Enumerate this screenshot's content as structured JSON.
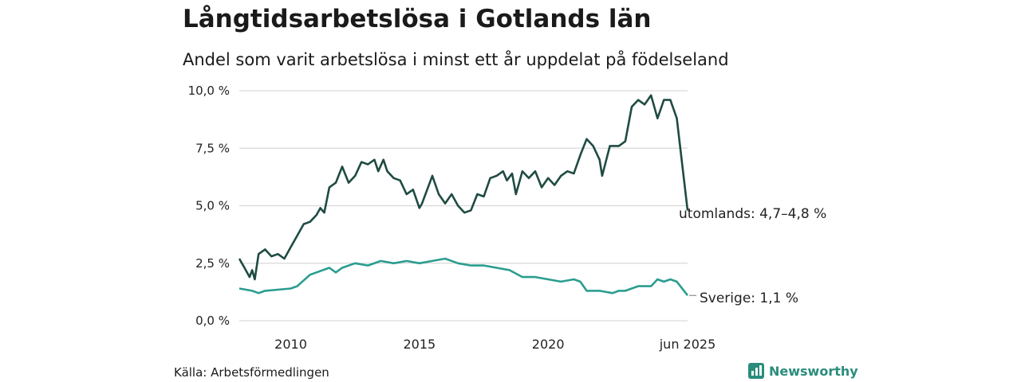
{
  "title": "Långtidsarbetslösa i Gotlands län",
  "subtitle": "Andel som varit arbetslösa i minst ett år uppdelat på födelseland",
  "source": "Källa: Arbetsförmedlingen",
  "brand": {
    "name": "Newsworthy",
    "icon": "newsworthy-logo-icon",
    "color": "#2a8c7c"
  },
  "chart_data": {
    "type": "line",
    "x_range": [
      "2008-01",
      "2025-06"
    ],
    "ylim": [
      0,
      10
    ],
    "y_ticks": [
      {
        "value": 0,
        "label": "0,0 %"
      },
      {
        "value": 2.5,
        "label": "2,5 %"
      },
      {
        "value": 5,
        "label": "5,0 %"
      },
      {
        "value": 7.5,
        "label": "7,5 %"
      },
      {
        "value": 10,
        "label": "10,0 %"
      }
    ],
    "x_ticks": [
      {
        "value": 2010,
        "label": "2010"
      },
      {
        "value": 2015,
        "label": "2015"
      },
      {
        "value": 2020,
        "label": "2020"
      },
      {
        "value": 2025.42,
        "label": "jun 2025"
      }
    ],
    "grid": "horizontal",
    "series": [
      {
        "name": "utomlands",
        "end_label": "utomlands: 4,7–4,8 %",
        "color": "#1f4b43",
        "points": [
          [
            2008.0,
            2.7
          ],
          [
            2008.2,
            2.3
          ],
          [
            2008.4,
            1.9
          ],
          [
            2008.5,
            2.2
          ],
          [
            2008.6,
            1.8
          ],
          [
            2008.75,
            2.9
          ],
          [
            2009.0,
            3.1
          ],
          [
            2009.25,
            2.8
          ],
          [
            2009.5,
            2.9
          ],
          [
            2009.75,
            2.7
          ],
          [
            2010.0,
            3.2
          ],
          [
            2010.25,
            3.7
          ],
          [
            2010.5,
            4.2
          ],
          [
            2010.75,
            4.3
          ],
          [
            2011.0,
            4.6
          ],
          [
            2011.15,
            4.9
          ],
          [
            2011.3,
            4.7
          ],
          [
            2011.5,
            5.8
          ],
          [
            2011.75,
            6.0
          ],
          [
            2012.0,
            6.7
          ],
          [
            2012.25,
            6.0
          ],
          [
            2012.5,
            6.3
          ],
          [
            2012.75,
            6.9
          ],
          [
            2013.0,
            6.8
          ],
          [
            2013.25,
            7.0
          ],
          [
            2013.4,
            6.5
          ],
          [
            2013.6,
            7.0
          ],
          [
            2013.75,
            6.5
          ],
          [
            2014.0,
            6.2
          ],
          [
            2014.25,
            6.1
          ],
          [
            2014.5,
            5.5
          ],
          [
            2014.75,
            5.7
          ],
          [
            2015.0,
            4.9
          ],
          [
            2015.1,
            5.1
          ],
          [
            2015.5,
            6.3
          ],
          [
            2015.75,
            5.5
          ],
          [
            2016.0,
            5.1
          ],
          [
            2016.25,
            5.5
          ],
          [
            2016.5,
            5.0
          ],
          [
            2016.75,
            4.7
          ],
          [
            2017.0,
            4.8
          ],
          [
            2017.25,
            5.5
          ],
          [
            2017.5,
            5.4
          ],
          [
            2017.75,
            6.2
          ],
          [
            2018.0,
            6.3
          ],
          [
            2018.25,
            6.5
          ],
          [
            2018.4,
            6.1
          ],
          [
            2018.6,
            6.4
          ],
          [
            2018.75,
            5.5
          ],
          [
            2019.0,
            6.5
          ],
          [
            2019.25,
            6.2
          ],
          [
            2019.5,
            6.5
          ],
          [
            2019.75,
            5.8
          ],
          [
            2020.0,
            6.2
          ],
          [
            2020.25,
            5.9
          ],
          [
            2020.5,
            6.3
          ],
          [
            2020.75,
            6.5
          ],
          [
            2021.0,
            6.4
          ],
          [
            2021.25,
            7.2
          ],
          [
            2021.5,
            7.9
          ],
          [
            2021.75,
            7.6
          ],
          [
            2022.0,
            7.0
          ],
          [
            2022.1,
            6.3
          ],
          [
            2022.4,
            7.6
          ],
          [
            2022.75,
            7.6
          ],
          [
            2023.0,
            7.8
          ],
          [
            2023.25,
            9.3
          ],
          [
            2023.5,
            9.6
          ],
          [
            2023.75,
            9.4
          ],
          [
            2024.0,
            9.8
          ],
          [
            2024.25,
            8.8
          ],
          [
            2024.5,
            9.6
          ],
          [
            2024.75,
            9.6
          ],
          [
            2025.0,
            8.8
          ],
          [
            2025.42,
            4.8
          ]
        ]
      },
      {
        "name": "Sverige",
        "end_label": "Sverige: 1,1 %",
        "color": "#2a9d8f",
        "points": [
          [
            2008.0,
            1.4
          ],
          [
            2008.5,
            1.3
          ],
          [
            2008.75,
            1.2
          ],
          [
            2009.0,
            1.3
          ],
          [
            2009.5,
            1.35
          ],
          [
            2010.0,
            1.4
          ],
          [
            2010.25,
            1.5
          ],
          [
            2010.75,
            2.0
          ],
          [
            2011.0,
            2.1
          ],
          [
            2011.25,
            2.2
          ],
          [
            2011.5,
            2.3
          ],
          [
            2011.75,
            2.1
          ],
          [
            2012.0,
            2.3
          ],
          [
            2012.5,
            2.5
          ],
          [
            2013.0,
            2.4
          ],
          [
            2013.5,
            2.6
          ],
          [
            2014.0,
            2.5
          ],
          [
            2014.5,
            2.6
          ],
          [
            2015.0,
            2.5
          ],
          [
            2015.5,
            2.6
          ],
          [
            2016.0,
            2.7
          ],
          [
            2016.5,
            2.5
          ],
          [
            2017.0,
            2.4
          ],
          [
            2017.5,
            2.4
          ],
          [
            2018.0,
            2.3
          ],
          [
            2018.5,
            2.2
          ],
          [
            2019.0,
            1.9
          ],
          [
            2019.5,
            1.9
          ],
          [
            2020.0,
            1.8
          ],
          [
            2020.5,
            1.7
          ],
          [
            2021.0,
            1.8
          ],
          [
            2021.25,
            1.7
          ],
          [
            2021.5,
            1.3
          ],
          [
            2022.0,
            1.3
          ],
          [
            2022.5,
            1.2
          ],
          [
            2022.75,
            1.3
          ],
          [
            2023.0,
            1.3
          ],
          [
            2023.5,
            1.5
          ],
          [
            2024.0,
            1.5
          ],
          [
            2024.25,
            1.8
          ],
          [
            2024.5,
            1.7
          ],
          [
            2024.75,
            1.8
          ],
          [
            2025.0,
            1.7
          ],
          [
            2025.42,
            1.1
          ]
        ]
      }
    ]
  }
}
